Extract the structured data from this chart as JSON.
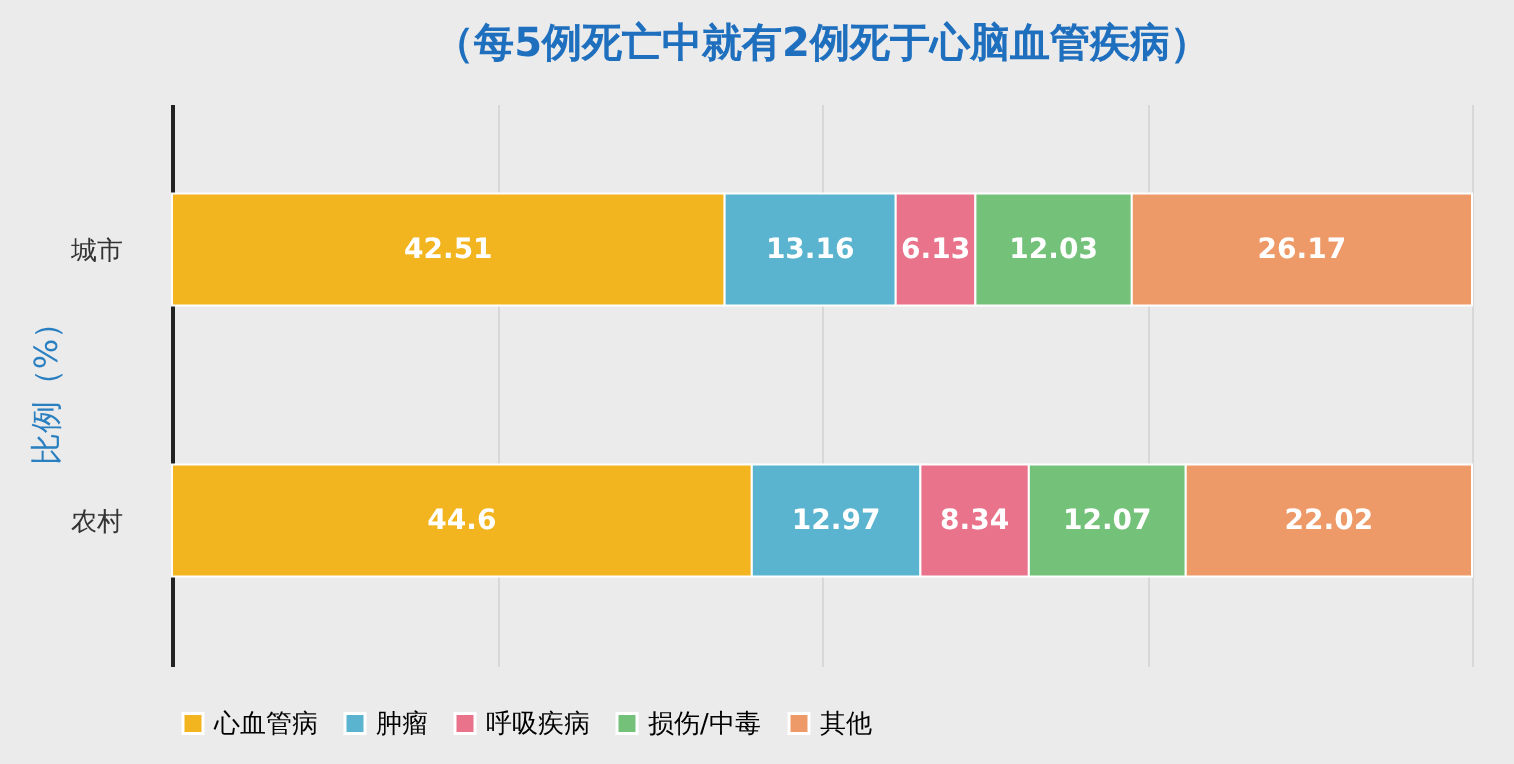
{
  "chart_data": {
    "type": "bar",
    "orientation": "horizontal",
    "stacked": true,
    "title": "（每5例死亡中就有2例死于心脑血管疾病）",
    "ylabel": "比例（%）",
    "categories": [
      "城市",
      "农村"
    ],
    "series": [
      {
        "name": "心血管病",
        "color": "#f2b51f",
        "values": [
          42.51,
          44.6
        ]
      },
      {
        "name": "肿瘤",
        "color": "#5ab4cf",
        "values": [
          13.16,
          12.97
        ]
      },
      {
        "name": "呼吸疾病",
        "color": "#e9738a",
        "values": [
          6.13,
          8.34
        ]
      },
      {
        "name": "损伤/中毒",
        "color": "#74c27a",
        "values": [
          12.03,
          12.07
        ]
      },
      {
        "name": "其他",
        "color": "#ee9a68",
        "values": [
          26.17,
          22.02
        ]
      }
    ],
    "xlim": [
      0,
      100
    ],
    "xticks": [
      {
        "value": 0,
        "label": null
      },
      {
        "value": 25,
        "label": null
      },
      {
        "value": 50,
        "label": null
      },
      {
        "value": 75,
        "label": null
      },
      {
        "value": 100,
        "label": null
      }
    ],
    "tick_labels": "y",
    "grid": "x",
    "legend": "bottom",
    "data_labels": true
  }
}
